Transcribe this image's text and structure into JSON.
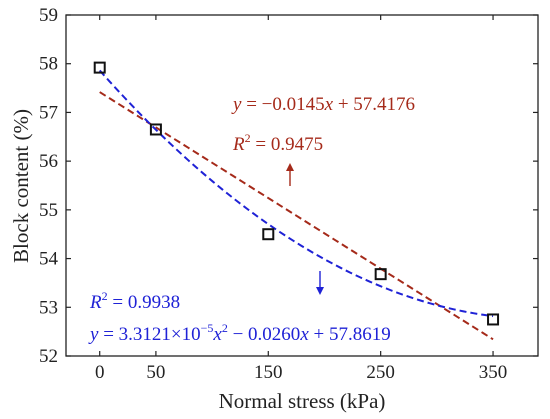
{
  "chart_data": {
    "type": "scatter",
    "title": "",
    "xlabel": "Normal stress (kPa)",
    "ylabel": "Block content (%)",
    "xlim": [
      -30,
      390
    ],
    "ylim": [
      52,
      59
    ],
    "xticks": [
      0,
      50,
      150,
      250,
      350
    ],
    "yticks": [
      52,
      53,
      54,
      55,
      56,
      57,
      58,
      59
    ],
    "grid": false,
    "points": {
      "x": [
        0,
        50,
        150,
        250,
        350
      ],
      "y": [
        57.92,
        56.65,
        54.5,
        53.68,
        52.75
      ],
      "marker": "open-square",
      "color": "#111111"
    },
    "fits": [
      {
        "kind": "linear",
        "color": "#a52a1a",
        "coefficients": {
          "a": -0.0145,
          "b": 57.4176
        },
        "x_range": [
          0,
          350
        ],
        "equation": {
          "lhs": "y",
          "eq": " = −0.0145",
          "var": "x",
          "rest": " + 57.4176"
        },
        "r2": {
          "label": "R",
          "sup": "2",
          "value": " = 0.9475"
        },
        "arrow": "up"
      },
      {
        "kind": "quadratic",
        "color": "#1f22d6",
        "coefficients": {
          "a": 3.3121e-05,
          "b": -0.026,
          "c": 57.8619
        },
        "x_range": [
          0,
          350
        ],
        "equation": {
          "lhs": "y",
          "eq": " = 3.3121×10",
          "exp": "−5",
          "var": "x",
          "sup": "2",
          "mid": " − 0.0260",
          "var2": "x",
          "rest": " + 57.8619"
        },
        "r2": {
          "label": "R",
          "sup": "2",
          "value": " = 0.9938"
        },
        "arrow": "down"
      }
    ]
  }
}
